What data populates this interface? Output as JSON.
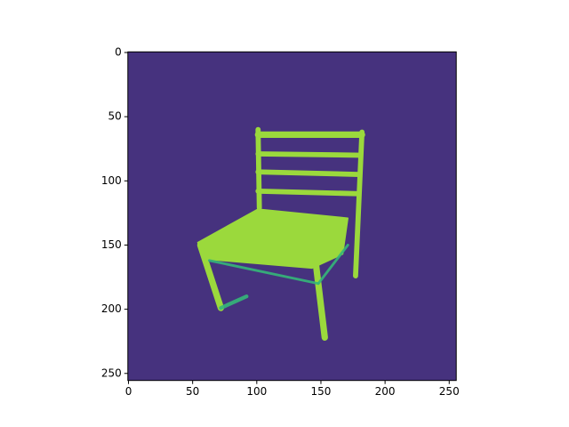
{
  "chart_data": {
    "type": "image",
    "xlim": [
      -0.5,
      255.5
    ],
    "ylim": [
      255.5,
      -0.5
    ],
    "xticks": [
      0,
      50,
      100,
      150,
      200,
      250
    ],
    "yticks": [
      0,
      50,
      100,
      150,
      200,
      250
    ],
    "background": "#46327e",
    "color": "#9bd93c"
  }
}
